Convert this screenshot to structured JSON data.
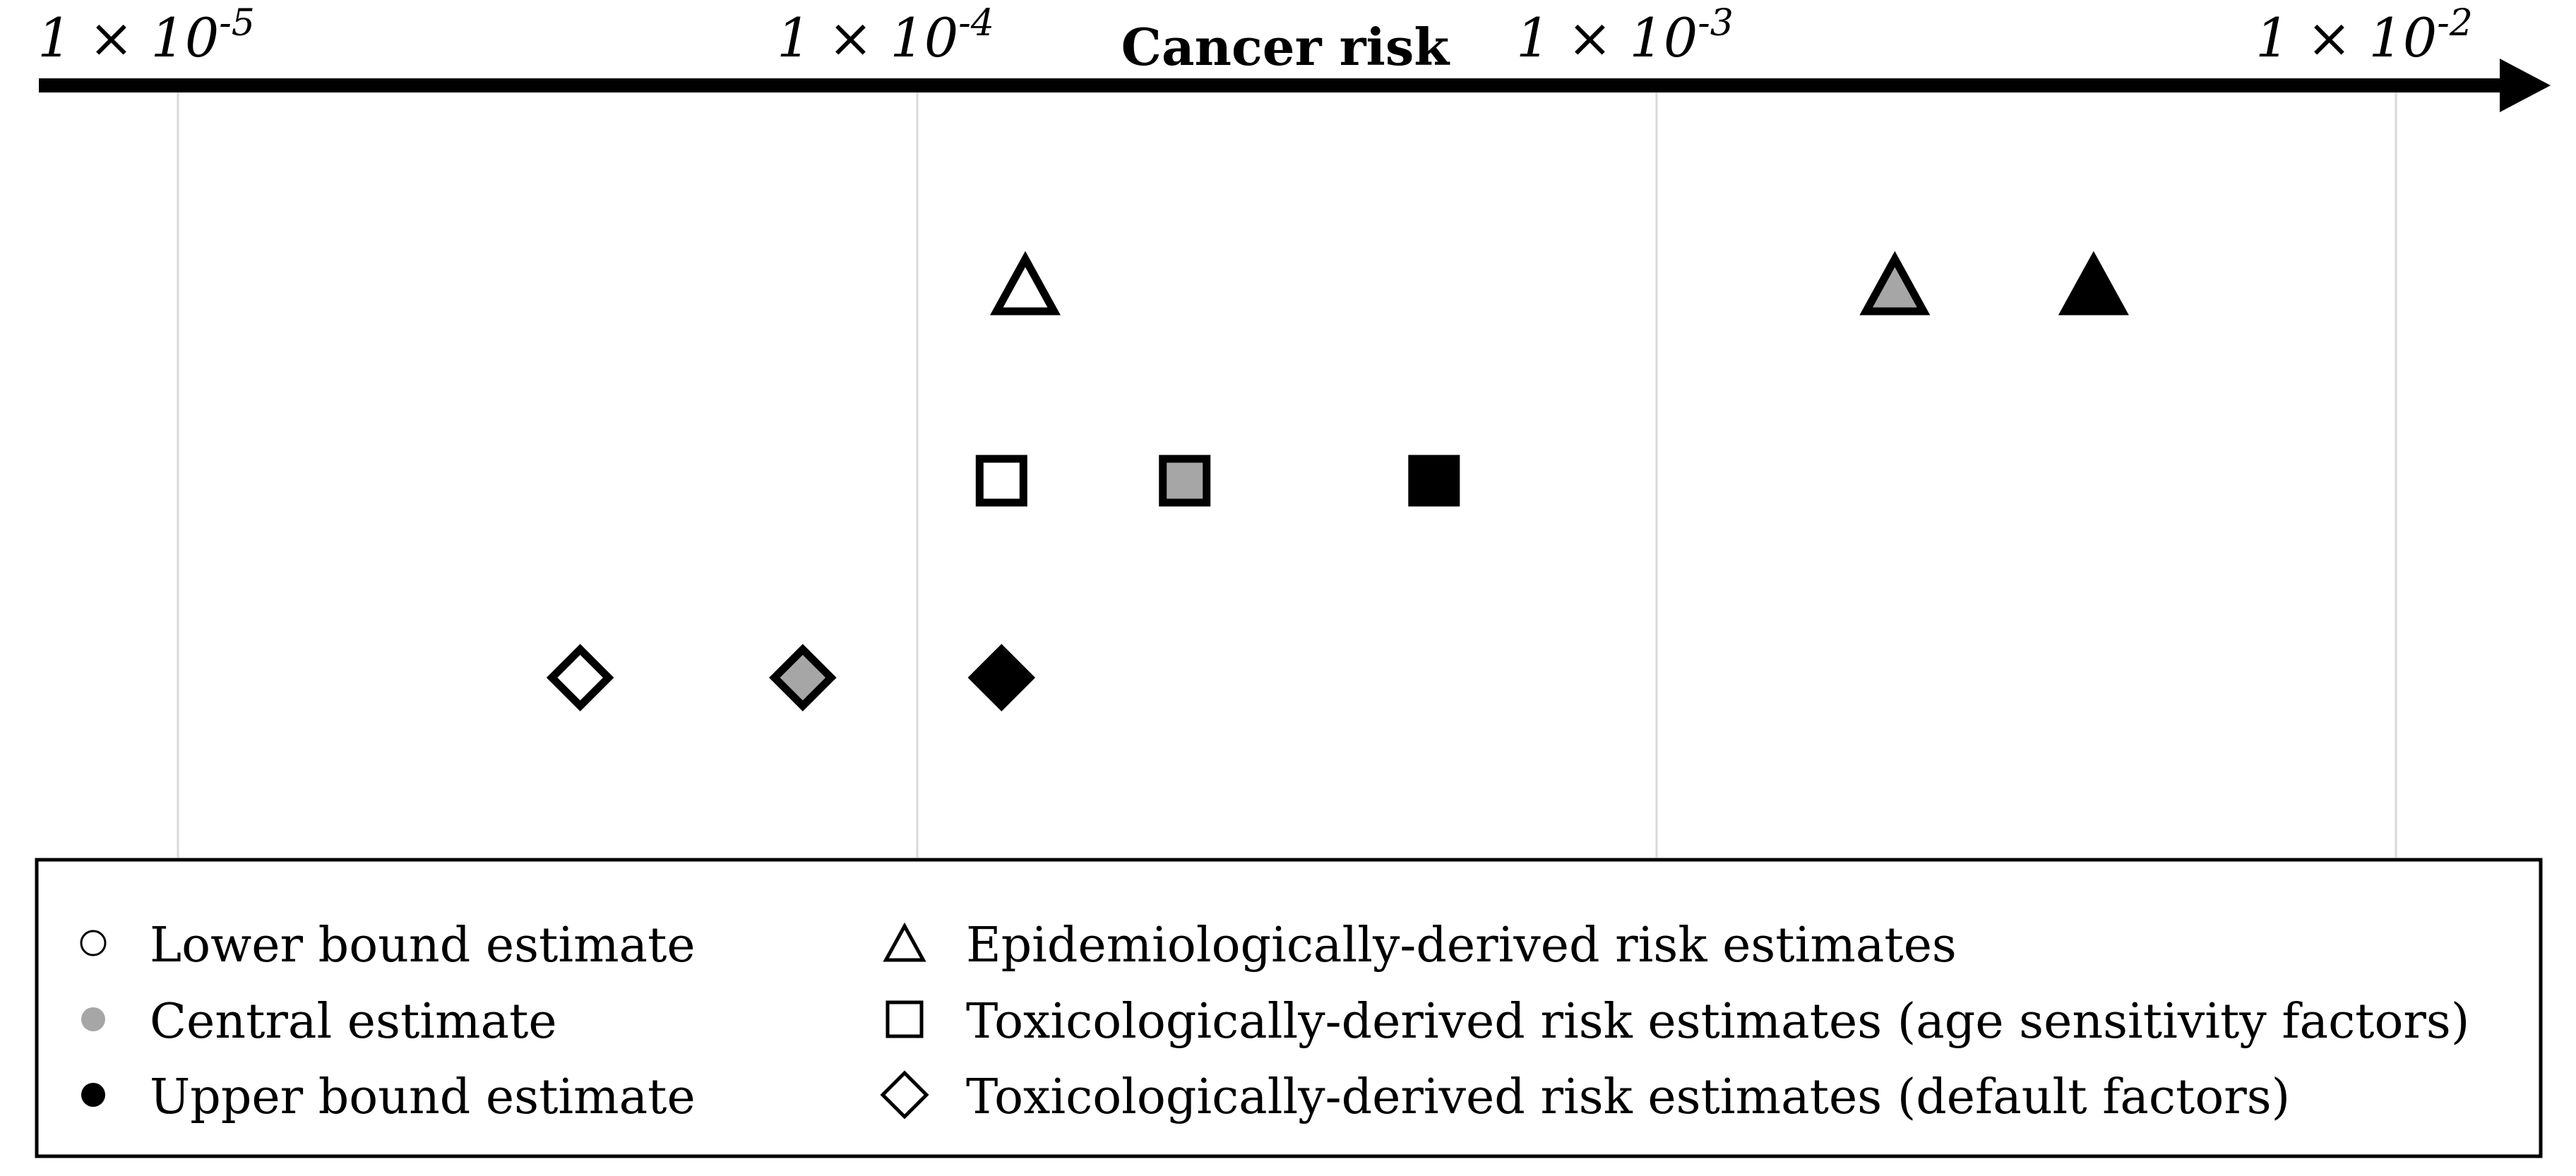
{
  "chart_data": {
    "type": "scatter",
    "title": "",
    "xlabel": "Cancer risk",
    "ylabel": "",
    "x_scale": "log",
    "x_ticks": [
      {
        "value": 1e-05,
        "base": "1 × 10",
        "exp": "-5"
      },
      {
        "value": 0.0001,
        "base": "1 × 10",
        "exp": "-4"
      },
      {
        "value": 0.001,
        "base": "1 × 10",
        "exp": "-3"
      },
      {
        "value": 0.01,
        "base": "1 × 10",
        "exp": "-2"
      }
    ],
    "grid": "vertical",
    "legend_position": "bottom",
    "series": [
      {
        "name": "Epidemiologically-derived risk estimates",
        "marker": "triangle",
        "points": [
          {
            "estimate": "lower",
            "x": 0.00014
          },
          {
            "estimate": "central",
            "x": 0.0021
          },
          {
            "estimate": "upper",
            "x": 0.0039
          }
        ]
      },
      {
        "name": "Toxicologically-derived risk estimates (age sensitivity factors)",
        "marker": "square",
        "points": [
          {
            "estimate": "lower",
            "x": 0.00013
          },
          {
            "estimate": "central",
            "x": 0.00023
          },
          {
            "estimate": "upper",
            "x": 0.0005
          }
        ]
      },
      {
        "name": "Toxicologically-derived risk estimates (default factors)",
        "marker": "diamond",
        "points": [
          {
            "estimate": "lower",
            "x": 3.5e-05
          },
          {
            "estimate": "central",
            "x": 7e-05
          },
          {
            "estimate": "upper",
            "x": 0.00013
          }
        ]
      }
    ],
    "estimate_fills": {
      "lower": "#ffffff",
      "central": "#a6a6a6",
      "upper": "#000000"
    },
    "colors": {
      "stroke": "#000000",
      "grid": "#d9d9d9",
      "background": "#ffffff"
    }
  },
  "legend": {
    "estimates": [
      {
        "symbol": "○",
        "label": "Lower bound estimate",
        "fill_key": "lower"
      },
      {
        "symbol": "●",
        "label": "Central estimate",
        "fill_key": "central"
      },
      {
        "symbol": "●",
        "label": "Upper bound estimate",
        "fill_key": "upper"
      }
    ],
    "methods": [
      {
        "symbol": "triangle",
        "label": "Epidemiologically-derived risk estimates"
      },
      {
        "symbol": "square",
        "label": "Toxicologically-derived risk estimates (age sensitivity factors)"
      },
      {
        "symbol": "diamond",
        "label": "Toxicologically-derived risk estimates (default factors)"
      }
    ]
  }
}
